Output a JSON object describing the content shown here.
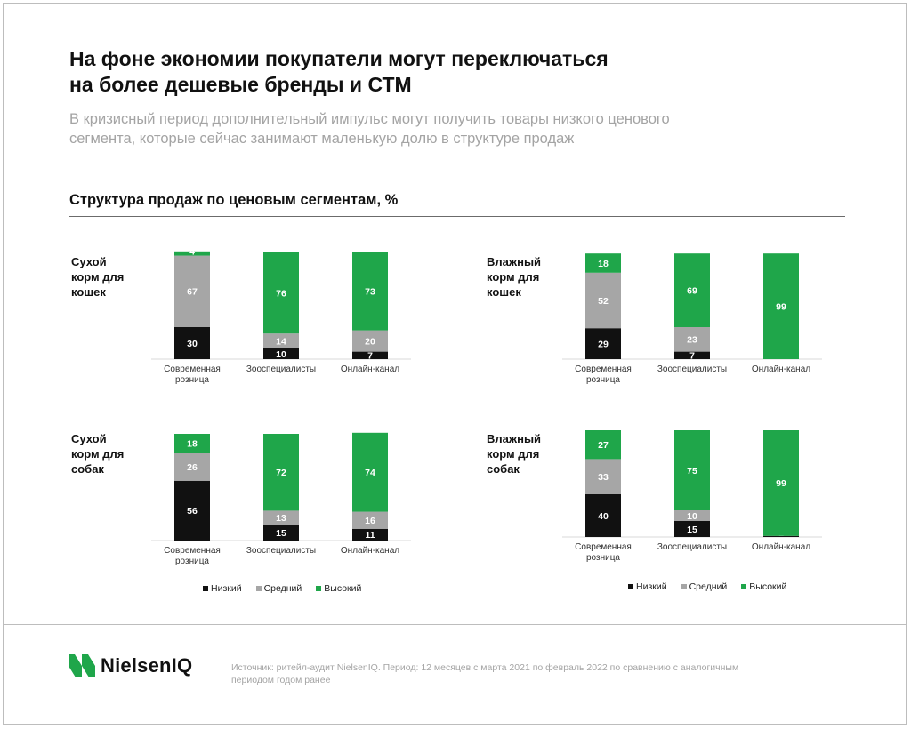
{
  "title_line1": "На фоне экономии покупатели могут переключаться",
  "title_line2": "на более дешевые бренды и СТМ",
  "subtitle_line1": "В кризисный период дополнительный импульс могут получить товары низкого ценового",
  "subtitle_line2": "сегмента, которые сейчас занимают маленькую долю в структуре продаж",
  "section_title": "Структура продаж по ценовым сегментам, %",
  "legend": [
    {
      "label": "Низкий",
      "color": "#111111"
    },
    {
      "label": "Средний",
      "color": "#a6a6a6"
    },
    {
      "label": "Высокий",
      "color": "#1fa64a"
    }
  ],
  "brand": "NielsenIQ",
  "source_line1": "Источник: ритейл-аудит NielsenIQ. Период: 12 месяцев с марта 2021 по февраль 2022 по сравнению с аналогичным",
  "source_line2": "периодом годом ранее",
  "chart_data": [
    {
      "type": "bar",
      "stacked": true,
      "label_lines": [
        "Сухой",
        "корм для",
        "кошек"
      ],
      "categories": [
        [
          "Современная",
          "розница"
        ],
        [
          "Зооспециалисты"
        ],
        [
          "Онлайн-канал"
        ]
      ],
      "series": [
        {
          "name": "Низкий",
          "values": [
            30,
            10,
            7
          ]
        },
        {
          "name": "Средний",
          "values": [
            67,
            14,
            20
          ]
        },
        {
          "name": "Высокий",
          "values": [
            4,
            76,
            73
          ]
        }
      ]
    },
    {
      "type": "bar",
      "stacked": true,
      "label_lines": [
        "Влажный",
        "корм для",
        "кошек"
      ],
      "categories": [
        [
          "Современная",
          "розница"
        ],
        [
          "Зооспециалисты"
        ],
        [
          "Онлайн-канал"
        ]
      ],
      "series": [
        {
          "name": "Низкий",
          "values": [
            29,
            7,
            0
          ]
        },
        {
          "name": "Средний",
          "values": [
            52,
            23,
            0
          ]
        },
        {
          "name": "Высокий",
          "values": [
            18,
            69,
            99
          ]
        }
      ]
    },
    {
      "type": "bar",
      "stacked": true,
      "label_lines": [
        "Сухой",
        "корм для",
        "собак"
      ],
      "categories": [
        [
          "Современная",
          "розница"
        ],
        [
          "Зооспециалисты"
        ],
        [
          "Онлайн-канал"
        ]
      ],
      "series": [
        {
          "name": "Низкий",
          "values": [
            56,
            15,
            11
          ]
        },
        {
          "name": "Средний",
          "values": [
            26,
            13,
            16
          ]
        },
        {
          "name": "Высокий",
          "values": [
            18,
            72,
            74
          ]
        }
      ]
    },
    {
      "type": "bar",
      "stacked": true,
      "label_lines": [
        "Влажный",
        "корм для",
        "собак"
      ],
      "categories": [
        [
          "Современная",
          "розница"
        ],
        [
          "Зооспециалисты"
        ],
        [
          "Онлайн-канал"
        ]
      ],
      "series": [
        {
          "name": "Низкий",
          "values": [
            40,
            15,
            1
          ]
        },
        {
          "name": "Средний",
          "values": [
            33,
            10,
            0
          ]
        },
        {
          "name": "Высокий",
          "values": [
            27,
            75,
            99
          ]
        }
      ]
    }
  ]
}
